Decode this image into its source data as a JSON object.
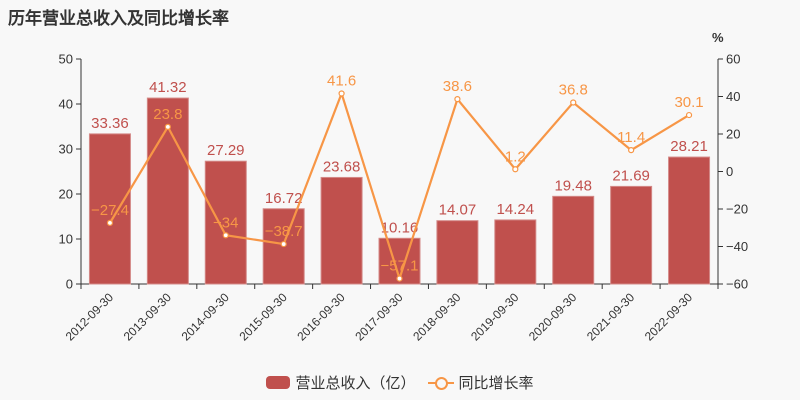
{
  "title": "历年营业总收入及同比增长率",
  "colors": {
    "bar": "#c0504d",
    "line": "#f79646",
    "axis": "#333333",
    "background": "#f8f8f8"
  },
  "legend": {
    "bar_label": "营业总收入（亿）",
    "line_label": "同比增长率"
  },
  "right_axis_unit": "%",
  "chart_data": {
    "type": "bar+line",
    "title": "历年营业总收入及同比增长率",
    "categories": [
      "2012-09-30",
      "2013-09-30",
      "2014-09-30",
      "2015-09-30",
      "2016-09-30",
      "2017-09-30",
      "2018-09-30",
      "2019-09-30",
      "2020-09-30",
      "2021-09-30",
      "2022-09-30"
    ],
    "series": [
      {
        "name": "营业总收入（亿）",
        "type": "bar",
        "axis": "left",
        "values": [
          33.36,
          41.32,
          27.29,
          16.72,
          23.68,
          10.16,
          14.07,
          14.24,
          19.48,
          21.69,
          28.21
        ]
      },
      {
        "name": "同比增长率",
        "type": "line",
        "axis": "right",
        "values": [
          -27.4,
          23.8,
          -34,
          -38.7,
          41.6,
          -57.1,
          38.6,
          1.2,
          36.8,
          11.4,
          30.1
        ]
      }
    ],
    "left_axis": {
      "min": 0,
      "max": 50,
      "ticks": [
        0,
        10,
        20,
        30,
        40,
        50
      ]
    },
    "right_axis": {
      "min": -60,
      "max": 60,
      "ticks": [
        -60,
        -40,
        -20,
        0,
        20,
        40,
        60
      ],
      "unit": "%"
    },
    "grid": false,
    "legend_position": "bottom"
  }
}
